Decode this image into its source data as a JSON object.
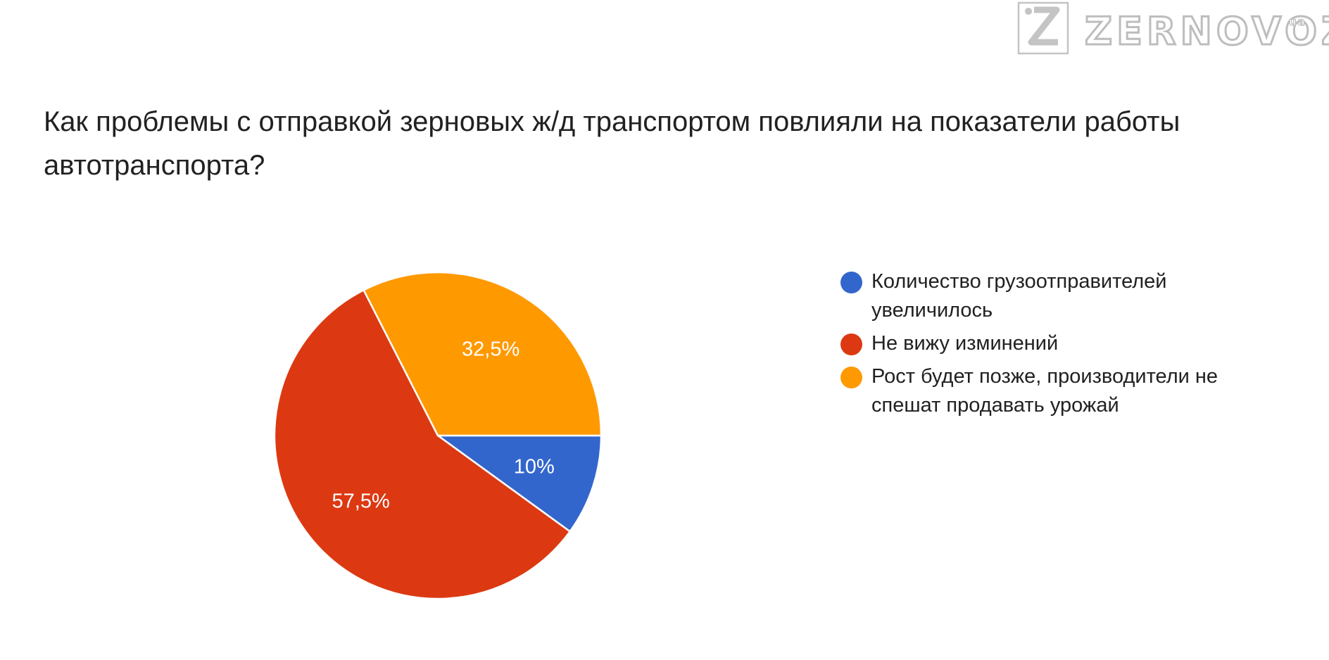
{
  "logo": {
    "text": "ZERNOVOZ",
    "suffix": "ua"
  },
  "chart_data": {
    "type": "pie",
    "title": "Как проблемы с отправкой зерновых ж/д транспортом повлияли на показатели работы автотранспорта?",
    "slices": [
      {
        "label": "Количество грузоотправителей увеличилось",
        "value": 10,
        "value_label": "10%",
        "color": "#3366cc"
      },
      {
        "label": "Не вижу изминений",
        "value": 57.5,
        "value_label": "57,5%",
        "color": "#dc3912"
      },
      {
        "label": "Рост будет позже, производители не спешат продавать урожай",
        "value": 32.5,
        "value_label": "32,5%",
        "color": "#ff9900"
      }
    ],
    "legend_position": "right"
  }
}
